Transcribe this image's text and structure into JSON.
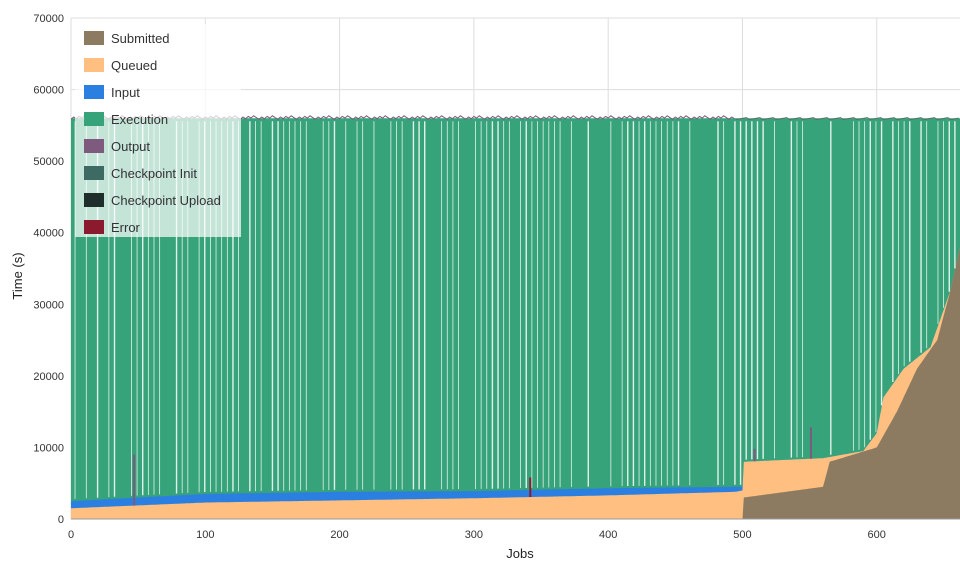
{
  "chart_data": {
    "type": "area",
    "stacked": true,
    "xlabel": "Jobs",
    "ylabel": "Time (s)",
    "xlim": [
      0,
      662
    ],
    "ylim": [
      0,
      70000
    ],
    "x_ticks": [
      0,
      100,
      200,
      300,
      400,
      500,
      600
    ],
    "y_ticks": [
      0,
      10000,
      20000,
      30000,
      40000,
      50000,
      60000,
      70000
    ],
    "grid": true,
    "legend_position": "top-left",
    "series": [
      {
        "name": "Submitted",
        "color": "#8c7b60"
      },
      {
        "name": "Queued",
        "color": "#ffbf80"
      },
      {
        "name": "Input",
        "color": "#2b7fe0"
      },
      {
        "name": "Execution",
        "color": "#36a37a"
      },
      {
        "name": "Output",
        "color": "#7d5a7e"
      },
      {
        "name": "Checkpoint Init",
        "color": "#3d6b63"
      },
      {
        "name": "Checkpoint Upload",
        "color": "#1f2e2a"
      },
      {
        "name": "Error",
        "color": "#8b1a2e"
      }
    ],
    "stack_end_by_series": {
      "Submitted": {
        "x": [
          0,
          500,
          501,
          560,
          565,
          600,
          615,
          630,
          645,
          655,
          662
        ],
        "y": [
          0,
          0,
          3000,
          4500,
          8000,
          10000,
          15000,
          21000,
          25000,
          32000,
          38000
        ]
      },
      "Queued": {
        "x": [
          0,
          100,
          200,
          300,
          400,
          495,
          500,
          501,
          560,
          590,
          600,
          605,
          620,
          640,
          655,
          662
        ],
        "y": [
          1500,
          2300,
          2600,
          2900,
          3300,
          3800,
          4000,
          8000,
          8500,
          9500,
          12000,
          17000,
          21000,
          24000,
          32000,
          36000
        ]
      },
      "Input": {
        "x": [
          0,
          100,
          200,
          300,
          400,
          495
        ],
        "y": [
          2500,
          3500,
          3800,
          3900,
          4300,
          4500
        ]
      },
      "Execution": {
        "x": [
          0,
          662
        ],
        "y": [
          56000,
          56000
        ]
      }
    },
    "spikes": [
      {
        "x": 47,
        "y": 9000,
        "series": "Output"
      },
      {
        "x": 342,
        "y": 5800,
        "series": "Error"
      },
      {
        "x": 509,
        "y": 9800,
        "series": "Output"
      },
      {
        "x": 551,
        "y": 12800,
        "series": "Output"
      }
    ]
  }
}
